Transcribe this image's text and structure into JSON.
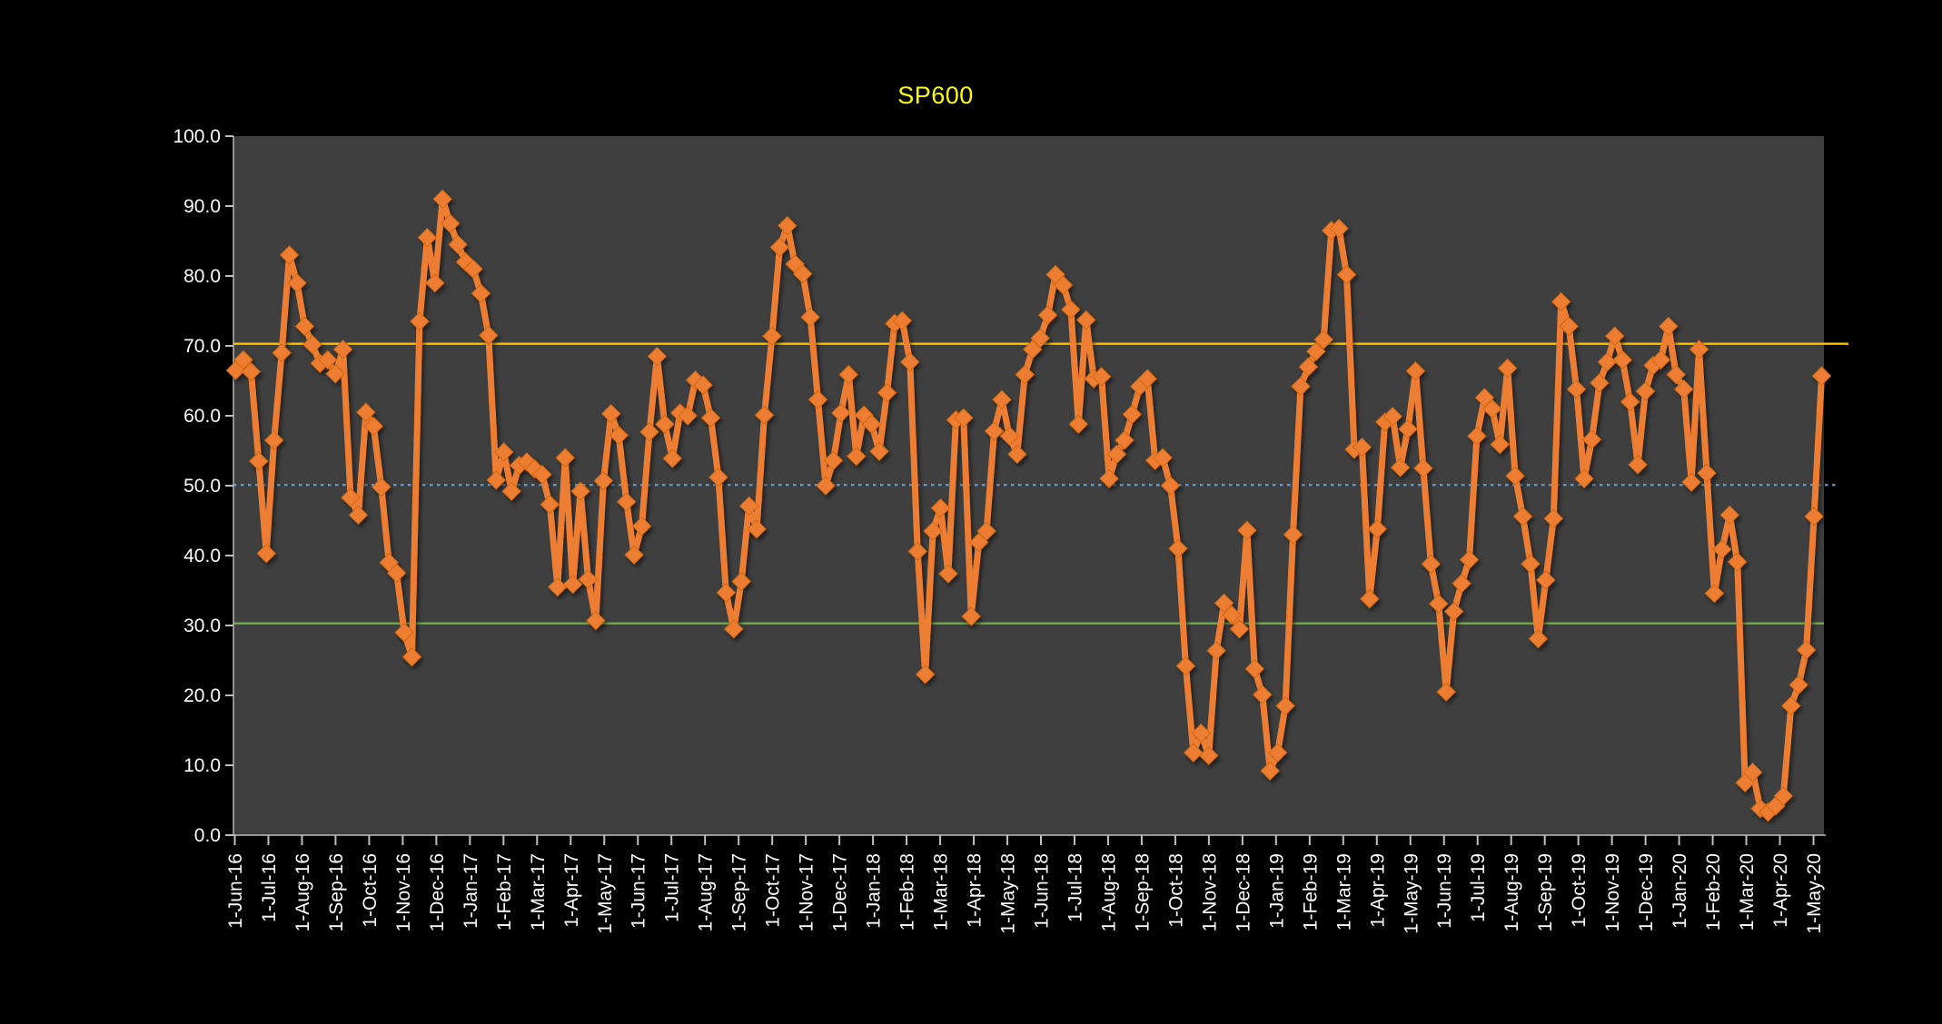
{
  "window": {
    "background": "#000000"
  },
  "chart_data": {
    "type": "line",
    "title": "SP600",
    "title_color": "#FFFF00",
    "series_name": "SP600",
    "series_color": "#ED7D31",
    "marker": "diamond",
    "frequency": "weekly",
    "plot_background": "#3F3F3F",
    "axis_color": "#BFBFBF",
    "label_color": "#FFFFFF",
    "grid": "off",
    "legend": "none",
    "ylim": [
      0,
      100
    ],
    "y_tick_labels": [
      "0.0",
      "10.0",
      "20.0",
      "30.0",
      "40.0",
      "50.0",
      "60.0",
      "70.0",
      "80.0",
      "90.0",
      "100.0"
    ],
    "x_tick_labels": [
      "1-Jun-16",
      "1-Jul-16",
      "1-Aug-16",
      "1-Sep-16",
      "1-Oct-16",
      "1-Nov-16",
      "1-Dec-16",
      "1-Jan-17",
      "1-Feb-17",
      "1-Mar-17",
      "1-Apr-17",
      "1-May-17",
      "1-Jun-17",
      "1-Jul-17",
      "1-Aug-17",
      "1-Sep-17",
      "1-Oct-17",
      "1-Nov-17",
      "1-Dec-17",
      "1-Jan-18",
      "1-Feb-18",
      "1-Mar-18",
      "1-Apr-18",
      "1-May-18",
      "1-Jun-18",
      "1-Jul-18",
      "1-Aug-18",
      "1-Sep-18",
      "1-Oct-18",
      "1-Nov-18",
      "1-Dec-18",
      "1-Jan-19",
      "1-Feb-19",
      "1-Mar-19",
      "1-Apr-19",
      "1-May-19",
      "1-Jun-19",
      "1-Jul-19",
      "1-Aug-19",
      "1-Sep-19",
      "1-Oct-19",
      "1-Nov-19",
      "1-Dec-19",
      "1-Jan-20",
      "1-Feb-20",
      "1-Mar-20",
      "1-Apr-20",
      "1-May-20"
    ],
    "reference_lines": [
      {
        "name": "upper-threshold",
        "value": 70.3,
        "color": "#FFC000",
        "style": "solid"
      },
      {
        "name": "mid-threshold",
        "value": 50.1,
        "color": "#5B9BD5",
        "style": "dotted"
      },
      {
        "name": "lower-threshold",
        "value": 30.3,
        "color": "#70AD47",
        "style": "solid"
      }
    ],
    "values": [
      66.5,
      68.0,
      66.3,
      53.5,
      40.3,
      56.5,
      69.0,
      83.0,
      79.0,
      72.8,
      70.2,
      67.5,
      68.0,
      66.0,
      69.5,
      48.3,
      45.8,
      60.5,
      58.5,
      49.8,
      39.0,
      37.5,
      29.0,
      25.5,
      73.5,
      85.5,
      79.0,
      91.0,
      87.5,
      84.5,
      82.0,
      81.0,
      77.5,
      71.5,
      50.8,
      54.8,
      49.2,
      52.9,
      53.4,
      52.4,
      51.6,
      47.3,
      35.5,
      54.0,
      35.9,
      49.2,
      36.6,
      30.7,
      50.7,
      60.3,
      57.2,
      47.7,
      40.1,
      44.2,
      57.7,
      68.5,
      58.8,
      53.9,
      60.4,
      60.0,
      65.1,
      64.4,
      59.7,
      51.2,
      34.7,
      29.5,
      36.3,
      47.1,
      43.8,
      60.1,
      71.4,
      84.1,
      87.2,
      81.7,
      80.3,
      74.1,
      62.3,
      50.0,
      53.6,
      60.4,
      65.9,
      54.2,
      60.1,
      58.8,
      54.9,
      63.3,
      73.2,
      73.6,
      67.7,
      40.6,
      23.0,
      43.5,
      46.8,
      37.4,
      59.4,
      59.7,
      31.3,
      41.9,
      43.5,
      57.8,
      62.3,
      57.1,
      54.5,
      65.9,
      69.5,
      71.1,
      74.4,
      80.2,
      78.7,
      75.2,
      58.8,
      73.7,
      65.3,
      65.6,
      51.0,
      54.5,
      56.5,
      60.2,
      64.2,
      65.3,
      53.6,
      54.0,
      50.0,
      41.0,
      24.2,
      11.8,
      14.6,
      11.4,
      26.4,
      33.2,
      31.5,
      29.5,
      43.6,
      23.8,
      20.1,
      9.2,
      11.8,
      18.5,
      43.0,
      64.2,
      67.0,
      69.2,
      70.9,
      86.5,
      86.8,
      80.2,
      55.2,
      55.5,
      33.8,
      43.8,
      59.1,
      59.9,
      52.6,
      58.1,
      66.4,
      52.5,
      38.8,
      33.1,
      20.5,
      32.0,
      36.0,
      39.4,
      57.1,
      62.6,
      61.0,
      55.9,
      66.8,
      51.4,
      45.6,
      38.8,
      28.1,
      36.5,
      45.3,
      76.3,
      72.8,
      63.8,
      51.0,
      56.6,
      64.7,
      67.7,
      71.4,
      68.0,
      62.0,
      53.0,
      63.5,
      67.2,
      68.0,
      72.8,
      65.9,
      63.8,
      50.5,
      69.5,
      51.8,
      34.6,
      40.9,
      45.8,
      39.1,
      7.5,
      9.0,
      3.8,
      3.3,
      4.2,
      5.6,
      18.5,
      21.5,
      26.5,
      45.6,
      65.7
    ]
  }
}
